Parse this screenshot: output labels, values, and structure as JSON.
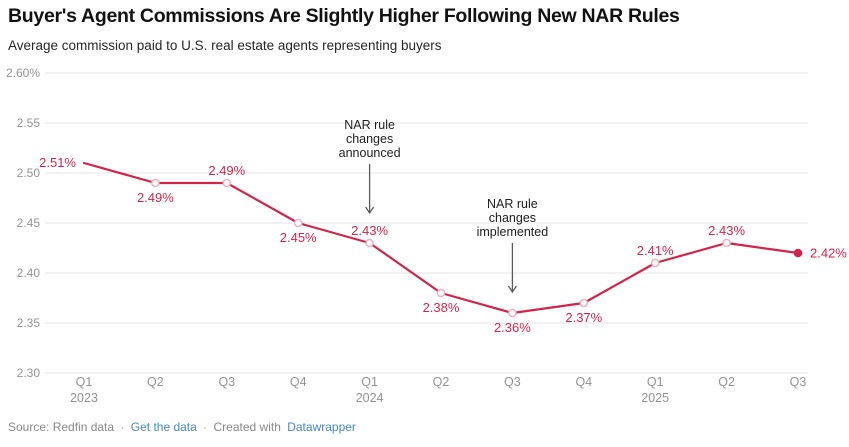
{
  "header": {
    "title": "Buyer's Agent Commissions Are Slightly Higher Following New NAR Rules",
    "subtitle": "Average commission paid to U.S. real estate agents representing buyers"
  },
  "chart_data": {
    "type": "line",
    "title": "Buyer's Agent Commissions Are Slightly Higher Following New NAR Rules",
    "subtitle": "Average commission paid to U.S. real estate agents representing buyers",
    "xlabel": "",
    "ylabel": "",
    "unit": "%",
    "ylim": [
      2.3,
      2.6
    ],
    "grid": true,
    "legend_position": "none",
    "x_categories": [
      "Q1 2023",
      "Q2 2023",
      "Q3 2023",
      "Q4 2023",
      "Q1 2024",
      "Q2 2024",
      "Q3 2024",
      "Q4 2024",
      "Q1 2025",
      "Q2 2025",
      "Q3 2025"
    ],
    "x_tick_labels": [
      {
        "q": "Q1",
        "year": "2023"
      },
      {
        "q": "Q2"
      },
      {
        "q": "Q3"
      },
      {
        "q": "Q4"
      },
      {
        "q": "Q1",
        "year": "2024"
      },
      {
        "q": "Q2"
      },
      {
        "q": "Q3"
      },
      {
        "q": "Q4"
      },
      {
        "q": "Q1",
        "year": "2025"
      },
      {
        "q": "Q2"
      },
      {
        "q": "Q3"
      }
    ],
    "values": [
      2.51,
      2.49,
      2.49,
      2.45,
      2.43,
      2.38,
      2.36,
      2.37,
      2.41,
      2.43,
      2.42
    ],
    "point_labels": [
      "2.51%",
      "2.49%",
      "2.49%",
      "2.45%",
      "2.43%",
      "2.38%",
      "2.36%",
      "2.37%",
      "2.41%",
      "2.43%",
      "2.42%"
    ],
    "label_positions": [
      "left",
      "below",
      "above",
      "below",
      "above",
      "below",
      "below",
      "below",
      "above",
      "above",
      "right"
    ],
    "markers": [
      "none",
      "open",
      "open",
      "open",
      "open",
      "open",
      "open",
      "open",
      "open",
      "open",
      "filled"
    ],
    "y_ticks": [
      {
        "value": 2.6,
        "label": "2.60%"
      },
      {
        "value": 2.55,
        "label": "2.55"
      },
      {
        "value": 2.5,
        "label": "2.50"
      },
      {
        "value": 2.45,
        "label": "2.45"
      },
      {
        "value": 2.4,
        "label": "2.40"
      },
      {
        "value": 2.35,
        "label": "2.35"
      },
      {
        "value": 2.3,
        "label": "2.30"
      }
    ],
    "annotations": [
      {
        "text": "NAR rule changes announced",
        "lines": [
          "NAR rule",
          "changes",
          "announced"
        ],
        "point_index": 4,
        "arrow_gap": 30
      },
      {
        "text": "NAR rule changes implemented",
        "lines": [
          "NAR rule",
          "changes",
          "implemented"
        ],
        "point_index": 6,
        "arrow_gap": 21
      }
    ],
    "colors": {
      "line": "#d2234c",
      "marker_open_stroke": "#eeacbc",
      "grid": "#e4e4e4",
      "axis_text": "#929292",
      "annotation_text": "#1d1d1d",
      "arrow": "#5a5a5a"
    }
  },
  "footer": {
    "source": "Source: Redfin data",
    "separator": "·",
    "get_data_link": "Get the data",
    "created_with": "Created with",
    "datawrapper_link": "Datawrapper",
    "link_color": "#4286c8"
  }
}
